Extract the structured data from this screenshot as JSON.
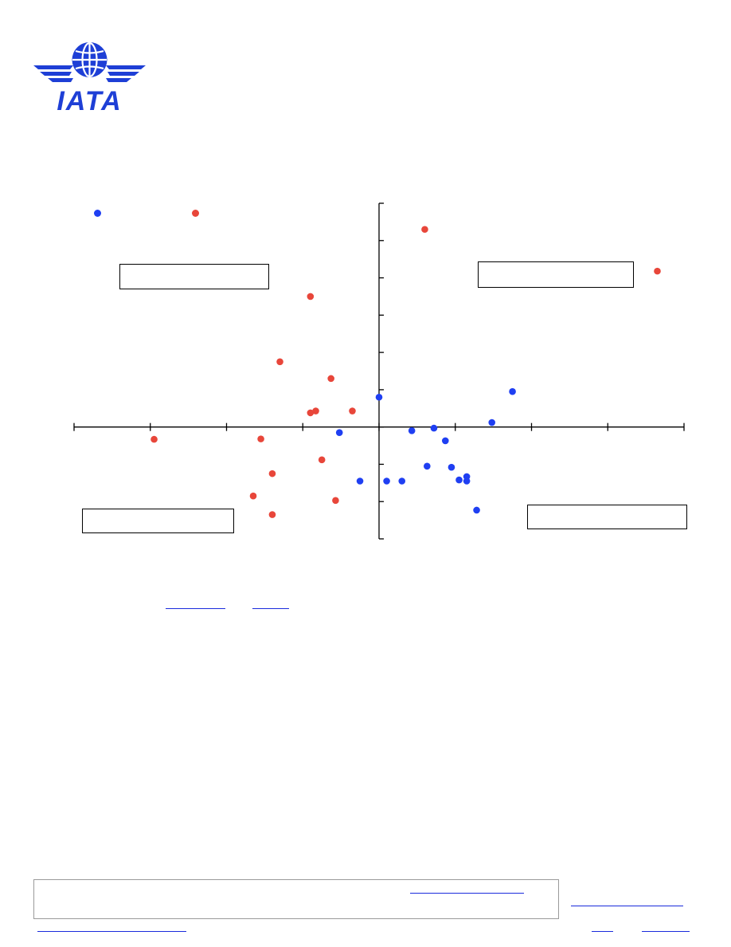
{
  "brand": {
    "logo_text": "IATA",
    "logo_color": "#1e3fd6"
  },
  "colors": {
    "series_blue": "#1f3ff2",
    "series_red": "#e8463a",
    "link": "#1a2bdc"
  },
  "legend": {
    "items": [
      {
        "name": "",
        "color": "#1f3ff2"
      },
      {
        "name": "",
        "color": "#e8463a"
      }
    ]
  },
  "quadrant_labels": {
    "top_left": "",
    "top_right": "",
    "bottom_left": "",
    "bottom_right": ""
  },
  "links": {
    "source_1": "",
    "source_2": "",
    "footer_link": "",
    "right_link": "",
    "bottom_left_link": "",
    "bottom_right_1": "",
    "bottom_right_2": ""
  },
  "chart_data": {
    "type": "scatter",
    "title": "",
    "xlabel": "",
    "ylabel": "",
    "xlim": [
      -4,
      4
    ],
    "ylim": [
      -3,
      6
    ],
    "grid": false,
    "legend_position": "top-left",
    "series": [
      {
        "color": "#1f3ff2",
        "points": [
          [
            0.0,
            0.8
          ],
          [
            1.75,
            0.95
          ],
          [
            1.48,
            0.12
          ],
          [
            0.72,
            -0.03
          ],
          [
            0.43,
            -0.1
          ],
          [
            -0.52,
            -0.15
          ],
          [
            0.87,
            -0.37
          ],
          [
            0.63,
            -1.05
          ],
          [
            0.95,
            -1.08
          ],
          [
            1.15,
            -1.33
          ],
          [
            1.05,
            -1.42
          ],
          [
            1.15,
            -1.45
          ],
          [
            -0.25,
            -1.45
          ],
          [
            0.1,
            -1.45
          ],
          [
            0.3,
            -1.45
          ],
          [
            1.28,
            -2.23
          ]
        ]
      },
      {
        "color": "#e8463a",
        "points": [
          [
            0.6,
            5.3
          ],
          [
            3.65,
            4.18
          ],
          [
            -0.9,
            3.5
          ],
          [
            -1.3,
            1.75
          ],
          [
            -0.63,
            1.3
          ],
          [
            -0.83,
            0.43
          ],
          [
            -0.9,
            0.38
          ],
          [
            -0.35,
            0.43
          ],
          [
            -2.95,
            -0.33
          ],
          [
            -1.55,
            -0.32
          ],
          [
            -0.75,
            -0.88
          ],
          [
            -1.4,
            -1.25
          ],
          [
            -1.65,
            -1.85
          ],
          [
            -0.57,
            -1.97
          ],
          [
            -1.4,
            -2.35
          ]
        ]
      }
    ]
  }
}
